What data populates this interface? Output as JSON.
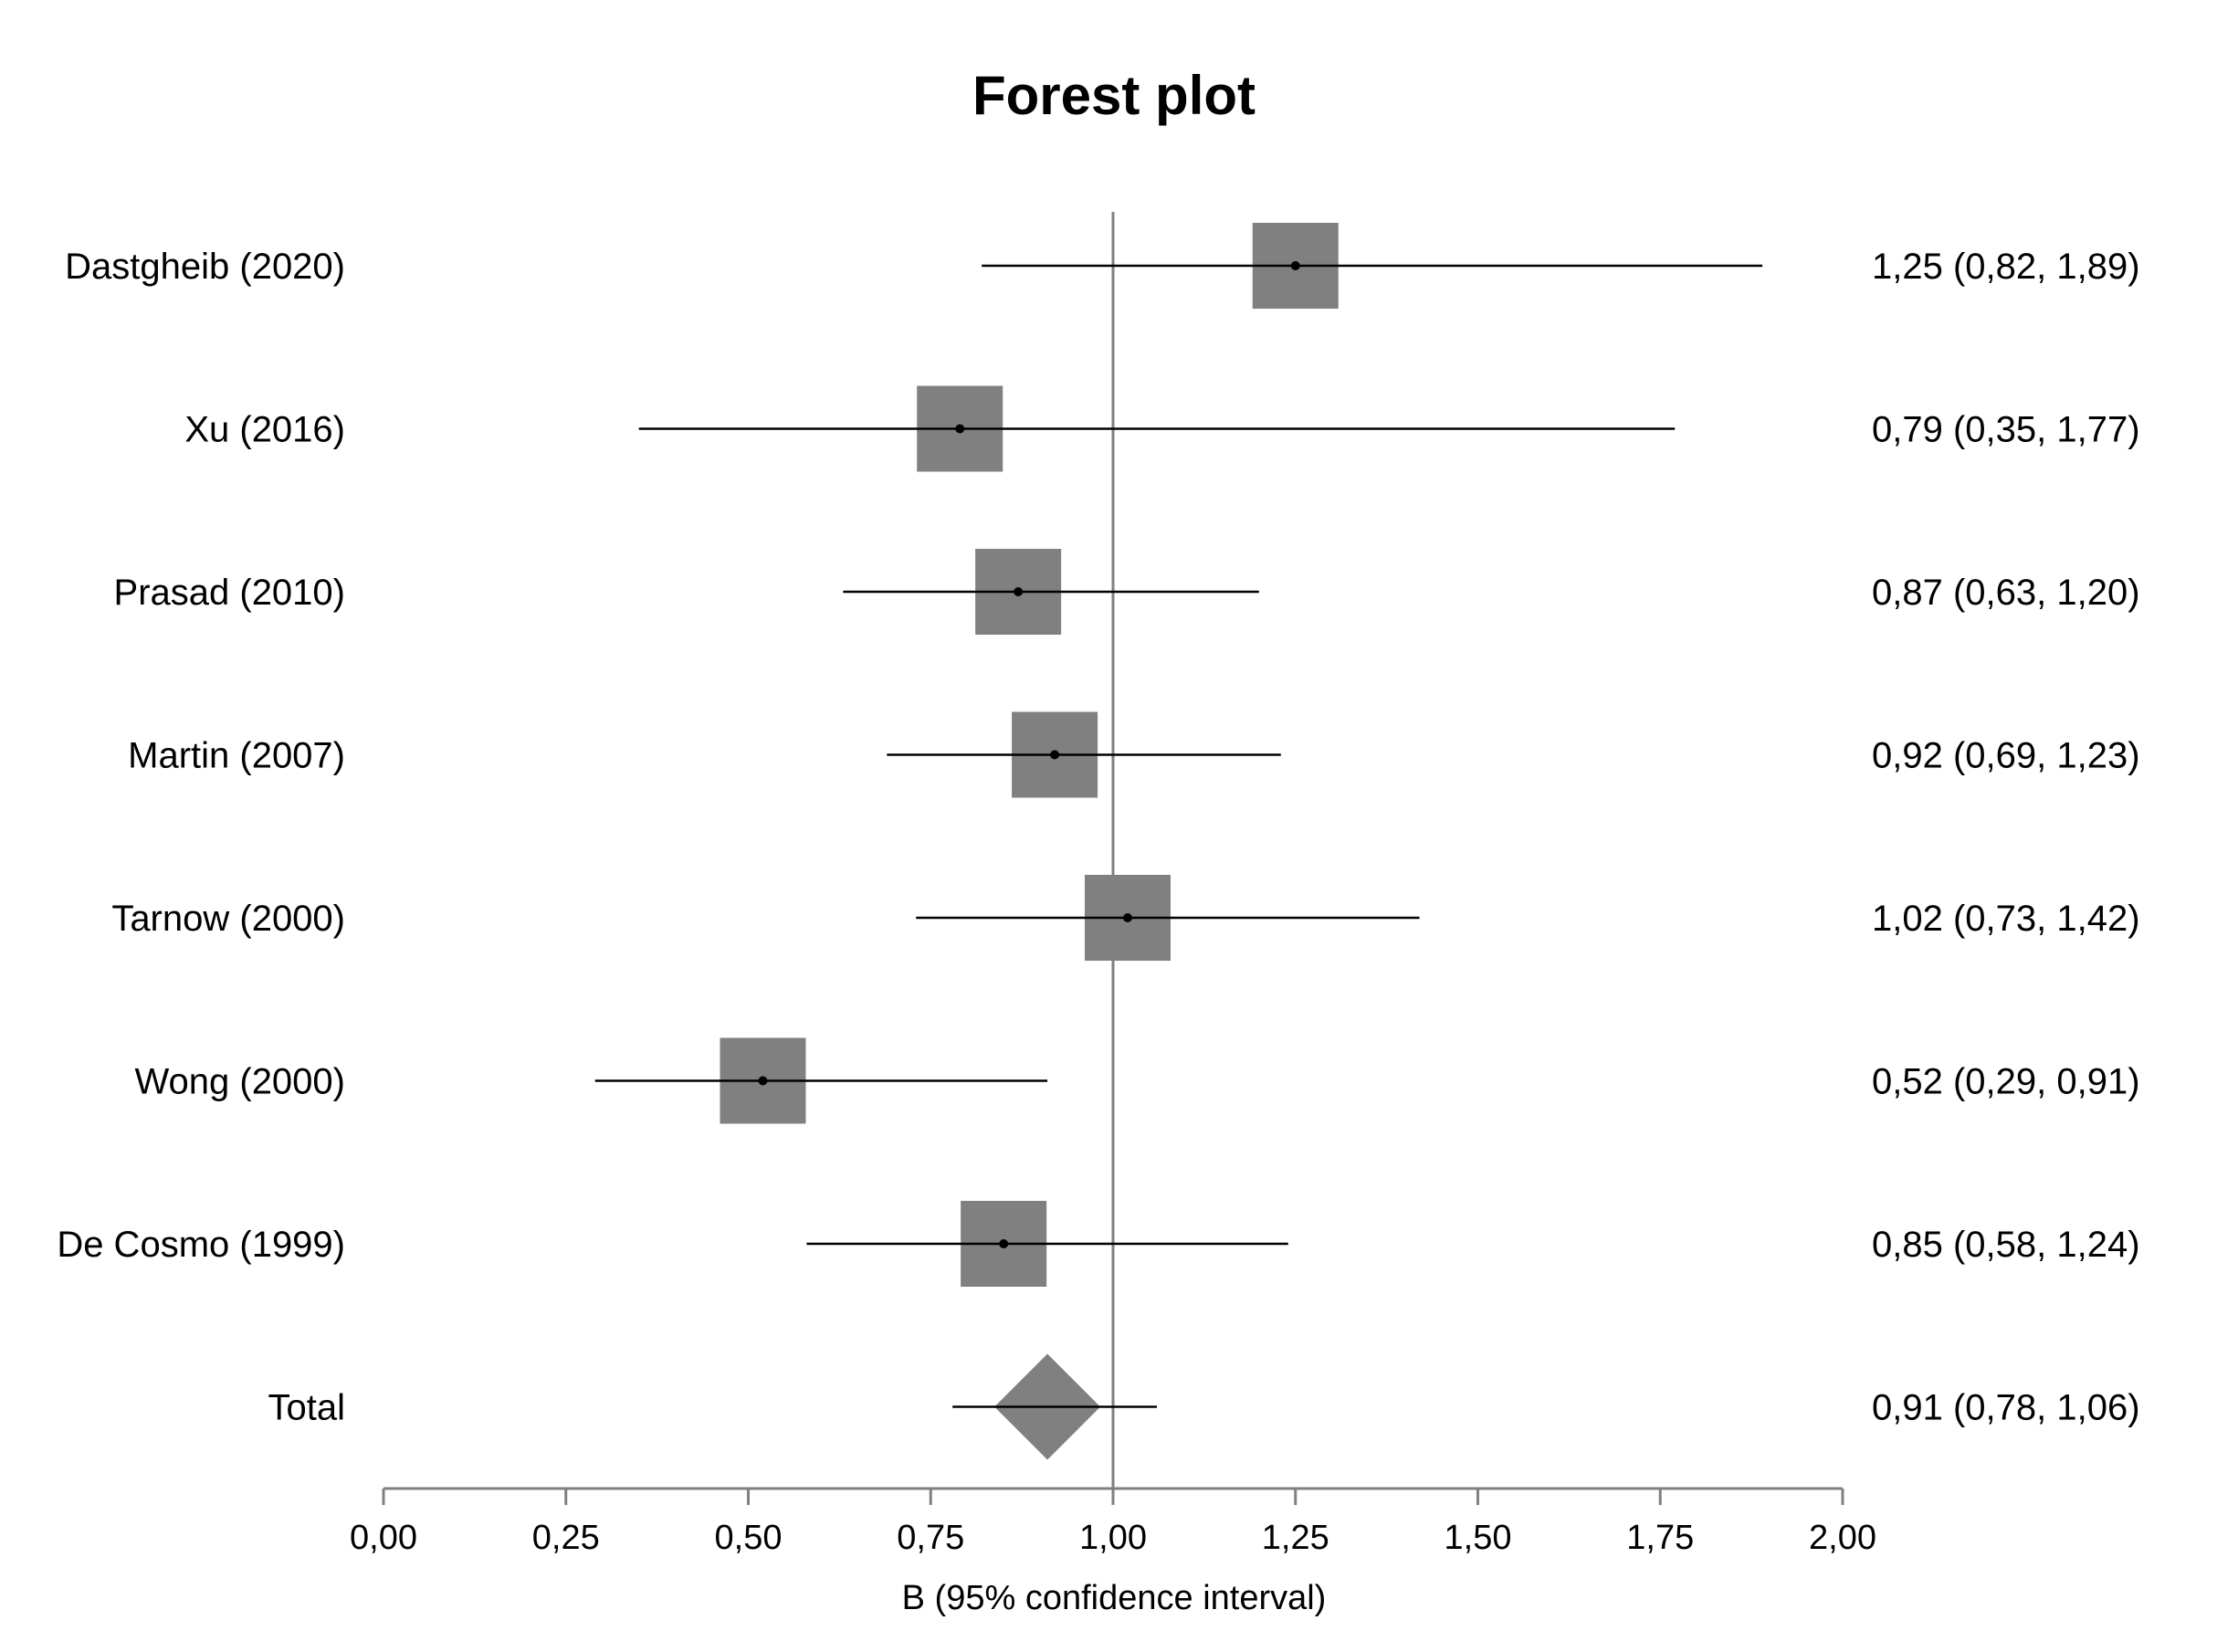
{
  "chart_data": {
    "type": "forest",
    "title": "Forest plot",
    "xlabel": "B (95% confidence interval)",
    "xlim": [
      0,
      2
    ],
    "reference_value": 1.0,
    "x_ticks": [
      0,
      0.25,
      0.5,
      0.75,
      1.0,
      1.25,
      1.5,
      1.75,
      2.0
    ],
    "x_tick_labels": [
      "0,00",
      "0,25",
      "0,50",
      "0,75",
      "1,00",
      "1,25",
      "1,50",
      "1,75",
      "2,00"
    ],
    "colors": {
      "marker": "#808080",
      "line": "#000000",
      "axis": "#808080"
    },
    "studies": [
      {
        "label": "Dastgheib (2020)",
        "estimate": 1.25,
        "lower": 0.82,
        "upper": 1.89,
        "text": "1,25 (0,82, 1,89)"
      },
      {
        "label": "Xu (2016)",
        "estimate": 0.79,
        "lower": 0.35,
        "upper": 1.77,
        "text": "0,79 (0,35, 1,77)"
      },
      {
        "label": "Prasad (2010)",
        "estimate": 0.87,
        "lower": 0.63,
        "upper": 1.2,
        "text": "0,87 (0,63, 1,20)"
      },
      {
        "label": "Martin (2007)",
        "estimate": 0.92,
        "lower": 0.69,
        "upper": 1.23,
        "text": "0,92 (0,69, 1,23)"
      },
      {
        "label": "Tarnow (2000)",
        "estimate": 1.02,
        "lower": 0.73,
        "upper": 1.42,
        "text": "1,02 (0,73, 1,42)"
      },
      {
        "label": "Wong (2000)",
        "estimate": 0.52,
        "lower": 0.29,
        "upper": 0.91,
        "text": "0,52 (0,29, 0,91)"
      },
      {
        "label": "De Cosmo (1999)",
        "estimate": 0.85,
        "lower": 0.58,
        "upper": 1.24,
        "text": "0,85 (0,58, 1,24)"
      }
    ],
    "total": {
      "label": "Total",
      "estimate": 0.91,
      "lower": 0.78,
      "upper": 1.06,
      "text": "0,91 (0,78, 1,06)"
    }
  }
}
